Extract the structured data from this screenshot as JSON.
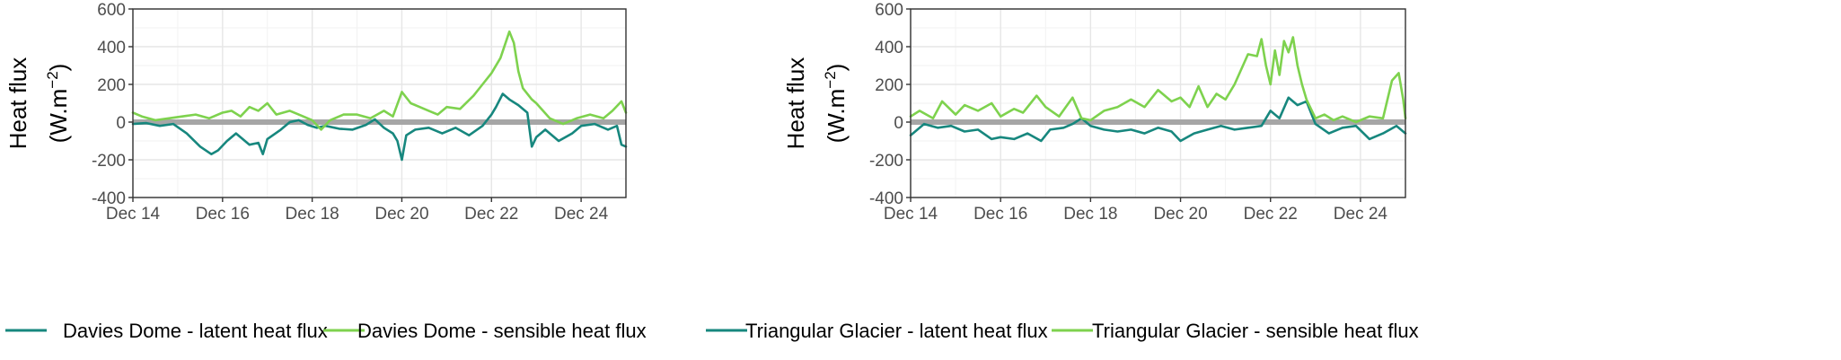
{
  "colors": {
    "latent": "#17877e",
    "sensible": "#7ed24e",
    "zero_line": "#a6a6a6"
  },
  "chart_data": [
    {
      "type": "line",
      "title": "",
      "xlabel": "",
      "ylabel_lines": [
        "Heat flux",
        "(W.m",
        "−2",
        ")"
      ],
      "xlim": [
        14,
        25
      ],
      "ylim": [
        -400,
        600
      ],
      "yticks": [
        -400,
        -200,
        0,
        200,
        400,
        600
      ],
      "xticks": [
        {
          "value": 14,
          "label": "Dec 14"
        },
        {
          "value": 16,
          "label": "Dec 16"
        },
        {
          "value": 18,
          "label": "Dec 18"
        },
        {
          "value": 20,
          "label": "Dec 20"
        },
        {
          "value": 22,
          "label": "Dec 22"
        },
        {
          "value": 24,
          "label": "Dec 24"
        }
      ],
      "grid": true,
      "legend": "bottom",
      "series": [
        {
          "name": "Davies Dome - latent heat flux",
          "color": "#17877e",
          "x": [
            14.0,
            14.3,
            14.6,
            14.9,
            15.2,
            15.5,
            15.75,
            15.9,
            16.1,
            16.3,
            16.6,
            16.8,
            16.9,
            17.0,
            17.3,
            17.5,
            17.7,
            17.9,
            18.1,
            18.3,
            18.6,
            18.9,
            19.2,
            19.4,
            19.6,
            19.8,
            19.9,
            20.0,
            20.1,
            20.3,
            20.6,
            20.9,
            21.2,
            21.5,
            21.8,
            22.0,
            22.1,
            22.25,
            22.4,
            22.6,
            22.8,
            22.9,
            23.0,
            23.2,
            23.5,
            23.8,
            24.0,
            24.3,
            24.6,
            24.8,
            24.9,
            25.0
          ],
          "y": [
            -10,
            -5,
            -20,
            -10,
            -60,
            -130,
            -170,
            -150,
            -100,
            -60,
            -120,
            -110,
            -170,
            -90,
            -40,
            0,
            10,
            -15,
            -30,
            -20,
            -35,
            -40,
            -15,
            15,
            -30,
            -60,
            -100,
            -200,
            -70,
            -40,
            -30,
            -60,
            -30,
            -70,
            -20,
            40,
            80,
            150,
            120,
            90,
            50,
            -130,
            -80,
            -40,
            -100,
            -60,
            -20,
            -10,
            -40,
            -20,
            -120,
            -130
          ]
        },
        {
          "name": "Davies Dome - sensible heat flux",
          "color": "#7ed24e",
          "x": [
            14.0,
            14.2,
            14.5,
            14.8,
            15.1,
            15.4,
            15.7,
            16.0,
            16.2,
            16.4,
            16.6,
            16.8,
            17.0,
            17.2,
            17.5,
            17.8,
            18.0,
            18.2,
            18.4,
            18.7,
            19.0,
            19.3,
            19.6,
            19.8,
            20.0,
            20.2,
            20.4,
            20.6,
            20.8,
            21.0,
            21.3,
            21.6,
            21.8,
            22.0,
            22.2,
            22.4,
            22.5,
            22.6,
            22.7,
            22.9,
            23.0,
            23.3,
            23.6,
            23.9,
            24.2,
            24.5,
            24.7,
            24.9,
            25.0
          ],
          "y": [
            50,
            30,
            10,
            20,
            30,
            40,
            20,
            50,
            60,
            30,
            80,
            60,
            100,
            40,
            60,
            30,
            10,
            -40,
            10,
            40,
            40,
            20,
            60,
            30,
            160,
            100,
            80,
            60,
            40,
            80,
            70,
            140,
            200,
            260,
            340,
            480,
            420,
            270,
            180,
            120,
            100,
            20,
            -10,
            20,
            40,
            20,
            60,
            110,
            50
          ]
        }
      ]
    },
    {
      "type": "line",
      "title": "",
      "xlabel": "",
      "ylabel_lines": [
        "Heat flux",
        "(W.m",
        "−2",
        ")"
      ],
      "xlim": [
        14,
        25
      ],
      "ylim": [
        -400,
        600
      ],
      "yticks": [
        -400,
        -200,
        0,
        200,
        400,
        600
      ],
      "xticks": [
        {
          "value": 14,
          "label": "Dec 14"
        },
        {
          "value": 16,
          "label": "Dec 16"
        },
        {
          "value": 18,
          "label": "Dec 18"
        },
        {
          "value": 20,
          "label": "Dec 20"
        },
        {
          "value": 22,
          "label": "Dec 22"
        },
        {
          "value": 24,
          "label": "Dec 24"
        }
      ],
      "grid": true,
      "legend": "bottom",
      "series": [
        {
          "name": "Triangular Glacier - latent heat flux",
          "color": "#17877e",
          "x": [
            14.0,
            14.3,
            14.6,
            14.9,
            15.2,
            15.5,
            15.8,
            16.0,
            16.3,
            16.6,
            16.9,
            17.1,
            17.4,
            17.6,
            17.8,
            18.0,
            18.3,
            18.6,
            18.9,
            19.2,
            19.5,
            19.8,
            20.0,
            20.3,
            20.6,
            20.9,
            21.2,
            21.5,
            21.8,
            22.0,
            22.2,
            22.4,
            22.6,
            22.8,
            23.0,
            23.3,
            23.6,
            23.9,
            24.2,
            24.5,
            24.8,
            25.0
          ],
          "y": [
            -70,
            -10,
            -30,
            -20,
            -50,
            -40,
            -90,
            -80,
            -90,
            -60,
            -100,
            -40,
            -30,
            -10,
            20,
            -20,
            -40,
            -50,
            -40,
            -60,
            -30,
            -50,
            -100,
            -60,
            -40,
            -20,
            -40,
            -30,
            -20,
            60,
            20,
            130,
            90,
            110,
            -10,
            -60,
            -30,
            -20,
            -90,
            -60,
            -20,
            -60
          ]
        },
        {
          "name": "Triangular Glacier - sensible heat flux",
          "color": "#7ed24e",
          "x": [
            14.0,
            14.2,
            14.5,
            14.7,
            15.0,
            15.2,
            15.5,
            15.8,
            16.0,
            16.3,
            16.5,
            16.8,
            17.0,
            17.3,
            17.6,
            17.8,
            18.0,
            18.3,
            18.6,
            18.9,
            19.2,
            19.5,
            19.8,
            20.0,
            20.2,
            20.4,
            20.6,
            20.8,
            21.0,
            21.2,
            21.5,
            21.7,
            21.8,
            21.9,
            22.0,
            22.1,
            22.2,
            22.3,
            22.4,
            22.5,
            22.6,
            22.7,
            22.8,
            23.0,
            23.2,
            23.4,
            23.6,
            23.9,
            24.2,
            24.5,
            24.7,
            24.85,
            24.95,
            25.0
          ],
          "y": [
            30,
            60,
            20,
            110,
            40,
            90,
            60,
            100,
            30,
            70,
            50,
            140,
            80,
            30,
            130,
            20,
            10,
            60,
            80,
            120,
            80,
            170,
            110,
            130,
            80,
            190,
            80,
            150,
            120,
            200,
            360,
            350,
            440,
            300,
            200,
            380,
            250,
            430,
            370,
            450,
            300,
            200,
            120,
            20,
            40,
            10,
            30,
            0,
            30,
            20,
            220,
            260,
            120,
            20
          ]
        }
      ]
    }
  ]
}
